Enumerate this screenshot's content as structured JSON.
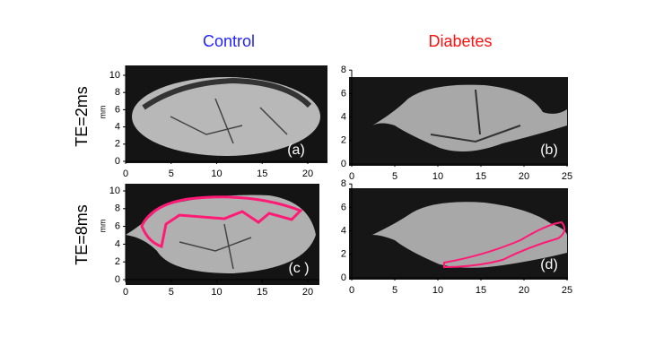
{
  "header": {
    "columns": [
      "Control",
      "Diabetes"
    ],
    "rows": [
      "TE=2ms",
      "TE=8ms"
    ]
  },
  "panels": [
    {
      "label": "(a)",
      "ylabel": "mm",
      "xticks": [
        0,
        5,
        10,
        15,
        20
      ],
      "yticks": [
        0,
        2,
        4,
        6,
        8,
        10
      ]
    },
    {
      "label": "(b)",
      "xticks": [
        0,
        5,
        10,
        15,
        20,
        25
      ],
      "yticks": [
        0,
        2,
        4,
        6,
        8
      ]
    },
    {
      "label": "(c )",
      "ylabel": "mm",
      "xticks": [
        0,
        5,
        10,
        15,
        20
      ],
      "yticks": [
        0,
        2,
        4,
        6,
        8,
        10
      ]
    },
    {
      "label": "(d)",
      "xticks": [
        0,
        5,
        10,
        15,
        20,
        25
      ],
      "yticks": [
        0,
        2,
        4,
        6,
        8
      ]
    }
  ]
}
